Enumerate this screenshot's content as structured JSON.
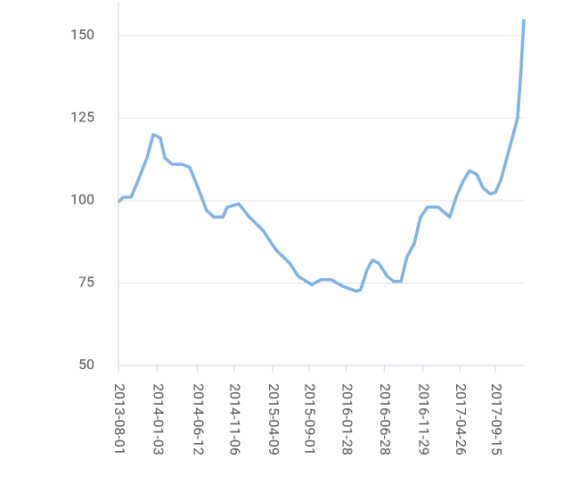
{
  "chart_data": {
    "type": "line",
    "x": [
      "2013-08-01",
      "2013-08-19",
      "2013-09-20",
      "2013-10-18",
      "2013-11-23",
      "2013-12-18",
      "2014-01-15",
      "2014-02-02",
      "2014-03-03",
      "2014-04-14",
      "2014-05-13",
      "2014-06-14",
      "2014-07-19",
      "2014-08-17",
      "2014-09-22",
      "2014-10-09",
      "2014-11-25",
      "2015-01-06",
      "2015-03-01",
      "2015-04-23",
      "2015-06-16",
      "2015-07-21",
      "2015-09-13",
      "2015-10-18",
      "2015-11-30",
      "2016-01-15",
      "2016-03-09",
      "2016-03-26",
      "2016-04-20",
      "2016-05-12",
      "2016-06-06",
      "2016-07-11",
      "2016-08-05",
      "2016-09-03",
      "2016-09-27",
      "2016-10-26",
      "2016-11-20",
      "2016-12-18",
      "2017-01-30",
      "2017-03-17",
      "2017-04-11",
      "2017-05-10",
      "2017-06-04",
      "2017-07-02",
      "2017-07-27",
      "2017-08-25",
      "2017-09-15",
      "2017-10-06",
      "2017-11-04",
      "2017-11-25",
      "2017-12-13",
      "2017-12-27",
      "2018-01-07"
    ],
    "series": [
      {
        "color": "#7fb2e5",
        "values": [
          99.5,
          101,
          101,
          106,
          113,
          120,
          119,
          113,
          111,
          111,
          110,
          104,
          97,
          95,
          95,
          98,
          99,
          95,
          91,
          85,
          81,
          77,
          74.5,
          76,
          76,
          74,
          72.5,
          73,
          79,
          82,
          81,
          77,
          75.5,
          75.5,
          83,
          87,
          95,
          98,
          98,
          95,
          101,
          106,
          109,
          108,
          104,
          102,
          102.5,
          106,
          114,
          120,
          125,
          140,
          155
        ]
      }
    ],
    "xlim": [
      "2013-08-01",
      "2018-01-07"
    ],
    "xticks": [
      "2013-08-01",
      "2014-01-03",
      "2014-06-12",
      "2014-11-06",
      "2015-04-09",
      "2015-09-01",
      "2016-01-28",
      "2016-06-28",
      "2016-11-29",
      "2017-04-26",
      "2017-09-15"
    ],
    "ylim": [
      50,
      155
    ],
    "yticks": [
      50,
      75,
      100,
      125,
      150
    ],
    "grid": true
  }
}
